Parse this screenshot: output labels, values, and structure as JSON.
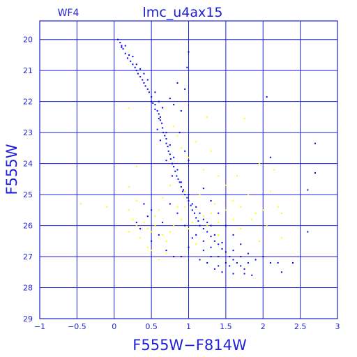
{
  "chart_data": {
    "type": "scatter",
    "panel_label": "WF4",
    "title": "lmc_u4ax15",
    "xlabel": "F555W−F814W",
    "ylabel": "F555W",
    "xlim": [
      -1,
      3
    ],
    "ylim": [
      29,
      19.4
    ],
    "y_inverted": true,
    "grid": true,
    "x_ticks": [
      -1,
      -0.5,
      0,
      0.5,
      1,
      1.5,
      2,
      2.5,
      3
    ],
    "x_tick_labels": [
      "−1",
      "−0.5",
      "0",
      "0.5",
      "1",
      "1.5",
      "2",
      "2.5",
      "3"
    ],
    "y_ticks": [
      20,
      21,
      22,
      23,
      24,
      25,
      26,
      27,
      28,
      29
    ],
    "y_tick_labels": [
      "20",
      "21",
      "22",
      "23",
      "24",
      "25",
      "26",
      "27",
      "28",
      "29"
    ],
    "colors": {
      "axes": "#1f1fd6",
      "grid": "#1f1fd6",
      "series_main": "#0000ee",
      "series_field": "#ffff00"
    },
    "series": [
      {
        "color": "#0000ee",
        "points": [
          [
            0.05,
            20.0
          ],
          [
            0.08,
            20.1
          ],
          [
            0.1,
            20.2
          ],
          [
            0.12,
            20.3
          ],
          [
            0.15,
            20.45
          ],
          [
            0.18,
            20.6
          ],
          [
            0.2,
            20.5
          ],
          [
            0.22,
            20.7
          ],
          [
            0.25,
            20.8
          ],
          [
            0.28,
            20.9
          ],
          [
            0.3,
            21.0
          ],
          [
            0.32,
            21.1
          ],
          [
            0.35,
            21.2
          ],
          [
            0.38,
            21.3
          ],
          [
            0.4,
            21.4
          ],
          [
            0.42,
            21.5
          ],
          [
            0.45,
            21.6
          ],
          [
            0.47,
            21.7
          ],
          [
            0.5,
            21.85
          ],
          [
            0.5,
            22.0
          ],
          [
            0.52,
            22.05
          ],
          [
            0.55,
            22.1
          ],
          [
            0.55,
            22.25
          ],
          [
            0.58,
            22.3
          ],
          [
            0.6,
            22.4
          ],
          [
            0.6,
            22.55
          ],
          [
            0.62,
            22.6
          ],
          [
            0.64,
            22.7
          ],
          [
            0.65,
            22.85
          ],
          [
            0.66,
            23.0
          ],
          [
            0.68,
            23.1
          ],
          [
            0.7,
            23.2
          ],
          [
            0.7,
            23.35
          ],
          [
            0.72,
            23.45
          ],
          [
            0.73,
            23.6
          ],
          [
            0.75,
            23.7
          ],
          [
            0.76,
            23.85
          ],
          [
            0.78,
            24.0
          ],
          [
            0.8,
            24.1
          ],
          [
            0.82,
            24.25
          ],
          [
            0.84,
            24.4
          ],
          [
            0.86,
            24.5
          ],
          [
            0.88,
            24.6
          ],
          [
            0.9,
            24.75
          ],
          [
            0.93,
            24.85
          ],
          [
            0.95,
            25.0
          ],
          [
            0.98,
            25.1
          ],
          [
            1.0,
            25.2
          ],
          [
            1.03,
            25.35
          ],
          [
            1.05,
            25.5
          ],
          [
            1.08,
            25.6
          ],
          [
            1.1,
            25.75
          ],
          [
            1.13,
            25.85
          ],
          [
            1.15,
            26.0
          ],
          [
            1.2,
            26.1
          ],
          [
            1.25,
            26.2
          ],
          [
            1.3,
            26.35
          ],
          [
            1.35,
            26.5
          ],
          [
            1.4,
            26.6
          ],
          [
            1.45,
            26.75
          ],
          [
            1.5,
            26.85
          ],
          [
            1.55,
            27.0
          ],
          [
            1.6,
            27.1
          ],
          [
            1.65,
            27.2
          ],
          [
            1.7,
            27.3
          ],
          [
            1.75,
            27.4
          ],
          [
            1.5,
            27.2
          ],
          [
            1.4,
            27.3
          ],
          [
            1.3,
            27.0
          ],
          [
            1.2,
            26.8
          ],
          [
            0.62,
            22.5
          ],
          [
            0.7,
            23.0
          ],
          [
            0.75,
            23.4
          ],
          [
            0.8,
            23.8
          ],
          [
            0.85,
            24.2
          ],
          [
            0.9,
            24.6
          ],
          [
            1.0,
            25.0
          ],
          [
            1.1,
            25.4
          ],
          [
            1.2,
            25.8
          ],
          [
            1.3,
            26.0
          ],
          [
            0.58,
            22.9
          ],
          [
            0.62,
            23.25
          ],
          [
            0.7,
            23.9
          ],
          [
            0.78,
            24.4
          ],
          [
            0.92,
            24.9
          ],
          [
            1.05,
            25.3
          ],
          [
            1.15,
            25.6
          ],
          [
            1.25,
            25.9
          ],
          [
            1.35,
            26.3
          ],
          [
            1.45,
            26.55
          ],
          [
            0.1,
            20.25
          ],
          [
            0.15,
            20.2
          ],
          [
            0.25,
            20.55
          ],
          [
            0.35,
            20.95
          ],
          [
            0.45,
            21.3
          ],
          [
            0.3,
            20.8
          ],
          [
            0.4,
            21.1
          ],
          [
            0.55,
            21.7
          ],
          [
            0.6,
            22.0
          ],
          [
            0.65,
            22.2
          ],
          [
            0.95,
            21.6
          ],
          [
            1.0,
            20.4
          ],
          [
            0.98,
            20.9
          ],
          [
            0.85,
            21.4
          ],
          [
            0.75,
            21.9
          ],
          [
            0.8,
            22.1
          ],
          [
            0.9,
            22.3
          ],
          [
            0.88,
            23.0
          ],
          [
            0.95,
            23.6
          ],
          [
            1.0,
            23.9
          ],
          [
            1.2,
            24.8
          ],
          [
            1.3,
            25.2
          ],
          [
            1.4,
            25.6
          ],
          [
            1.5,
            26.0
          ],
          [
            1.6,
            26.3
          ],
          [
            1.7,
            26.6
          ],
          [
            1.8,
            26.9
          ],
          [
            1.9,
            27.1
          ],
          [
            2.0,
            27.0
          ],
          [
            2.1,
            27.2
          ],
          [
            2.2,
            27.2
          ],
          [
            2.4,
            27.2
          ],
          [
            2.05,
            21.85
          ],
          [
            2.1,
            23.8
          ],
          [
            2.6,
            24.85
          ],
          [
            2.7,
            23.35
          ],
          [
            2.7,
            24.3
          ],
          [
            2.6,
            26.2
          ],
          [
            1.0,
            26.7
          ],
          [
            0.9,
            27.0
          ],
          [
            0.35,
            26.1
          ],
          [
            0.4,
            25.3
          ],
          [
            0.45,
            25.7
          ],
          [
            0.5,
            26.5
          ],
          [
            0.6,
            26.3
          ],
          [
            0.7,
            26.8
          ],
          [
            0.8,
            27.0
          ],
          [
            0.3,
            25.9
          ],
          [
            0.5,
            25.5
          ],
          [
            0.65,
            25.9
          ],
          [
            1.1,
            26.3
          ],
          [
            1.2,
            26.5
          ],
          [
            1.3,
            26.7
          ],
          [
            1.4,
            27.0
          ],
          [
            1.55,
            27.3
          ],
          [
            1.6,
            26.8
          ],
          [
            1.7,
            27.0
          ],
          [
            1.8,
            27.2
          ],
          [
            1.25,
            27.2
          ],
          [
            1.35,
            27.4
          ],
          [
            1.45,
            27.5
          ],
          [
            1.6,
            27.55
          ],
          [
            1.75,
            27.55
          ],
          [
            1.85,
            27.6
          ],
          [
            2.25,
            27.5
          ],
          [
            1.15,
            27.1
          ],
          [
            1.05,
            26.4
          ],
          [
            0.95,
            26.0
          ],
          [
            0.85,
            25.6
          ],
          [
            0.75,
            25.3
          ]
        ]
      },
      {
        "color": "#ffff00",
        "points": [
          [
            0.2,
            22.2
          ],
          [
            0.3,
            24.1
          ],
          [
            0.2,
            24.75
          ],
          [
            -0.45,
            25.3
          ],
          [
            -0.1,
            25.4
          ],
          [
            0.2,
            25.5
          ],
          [
            0.25,
            25.8
          ],
          [
            0.3,
            26.0
          ],
          [
            0.4,
            25.9
          ],
          [
            0.45,
            26.1
          ],
          [
            0.5,
            26.2
          ],
          [
            0.55,
            25.7
          ],
          [
            0.6,
            25.5
          ],
          [
            0.65,
            26.3
          ],
          [
            0.7,
            26.5
          ],
          [
            0.75,
            26.2
          ],
          [
            0.8,
            26.0
          ],
          [
            0.85,
            25.4
          ],
          [
            0.9,
            25.8
          ],
          [
            1.0,
            26.1
          ],
          [
            1.05,
            25.9
          ],
          [
            1.1,
            26.6
          ],
          [
            1.2,
            25.7
          ],
          [
            1.3,
            25.6
          ],
          [
            1.35,
            25.3
          ],
          [
            1.4,
            25.9
          ],
          [
            1.5,
            25.5
          ],
          [
            1.6,
            25.2
          ],
          [
            1.7,
            25.4
          ],
          [
            1.8,
            25.0
          ],
          [
            1.9,
            25.6
          ],
          [
            2.0,
            25.5
          ],
          [
            2.1,
            24.9
          ],
          [
            2.2,
            25.4
          ],
          [
            2.25,
            25.6
          ],
          [
            2.25,
            26.4
          ],
          [
            1.95,
            26.5
          ],
          [
            1.7,
            26.1
          ],
          [
            1.5,
            24.7
          ],
          [
            1.4,
            24.4
          ],
          [
            1.2,
            24.2
          ],
          [
            1.0,
            23.8
          ],
          [
            0.9,
            23.5
          ],
          [
            0.85,
            23.1
          ],
          [
            1.25,
            22.5
          ],
          [
            1.75,
            22.55
          ],
          [
            0.95,
            24.9
          ],
          [
            0.7,
            26.9
          ],
          [
            0.6,
            27.1
          ],
          [
            0.45,
            26.7
          ],
          [
            0.35,
            26.4
          ],
          [
            0.55,
            26.0
          ],
          [
            0.2,
            26.2
          ],
          [
            0.3,
            25.2
          ],
          [
            0.65,
            25.1
          ],
          [
            0.75,
            24.7
          ],
          [
            0.95,
            25.4
          ],
          [
            1.15,
            25.0
          ],
          [
            1.25,
            26.0
          ],
          [
            1.4,
            26.3
          ],
          [
            1.6,
            25.8
          ],
          [
            1.85,
            25.8
          ],
          [
            2.05,
            26.0
          ],
          [
            2.15,
            24.2
          ],
          [
            1.95,
            24.0
          ],
          [
            1.65,
            24.4
          ],
          [
            1.3,
            23.6
          ],
          [
            1.1,
            23.3
          ],
          [
            0.8,
            22.8
          ],
          [
            0.5,
            26.8
          ]
        ]
      }
    ]
  }
}
